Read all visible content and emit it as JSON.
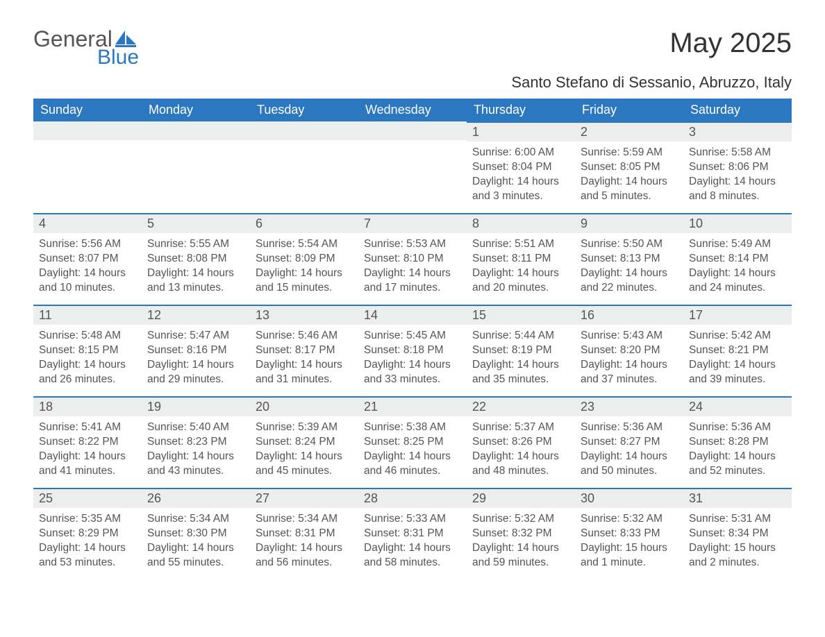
{
  "logo": {
    "general": "General",
    "blue": "Blue"
  },
  "title": "May 2025",
  "location": "Santo Stefano di Sessanio, Abruzzo, Italy",
  "colors": {
    "header_bg": "#2b77c0",
    "header_text": "#ffffff",
    "daynum_bg": "#eceded",
    "row_border": "#2b77c0",
    "body_text": "#555555",
    "logo_blue": "#2b77c0",
    "logo_gray": "#555555",
    "page_bg": "#ffffff"
  },
  "weekdays": [
    "Sunday",
    "Monday",
    "Tuesday",
    "Wednesday",
    "Thursday",
    "Friday",
    "Saturday"
  ],
  "weeks": [
    [
      null,
      null,
      null,
      null,
      {
        "day": "1",
        "sunrise": "6:00 AM",
        "sunset": "8:04 PM",
        "daylight": "14 hours and 3 minutes."
      },
      {
        "day": "2",
        "sunrise": "5:59 AM",
        "sunset": "8:05 PM",
        "daylight": "14 hours and 5 minutes."
      },
      {
        "day": "3",
        "sunrise": "5:58 AM",
        "sunset": "8:06 PM",
        "daylight": "14 hours and 8 minutes."
      }
    ],
    [
      {
        "day": "4",
        "sunrise": "5:56 AM",
        "sunset": "8:07 PM",
        "daylight": "14 hours and 10 minutes."
      },
      {
        "day": "5",
        "sunrise": "5:55 AM",
        "sunset": "8:08 PM",
        "daylight": "14 hours and 13 minutes."
      },
      {
        "day": "6",
        "sunrise": "5:54 AM",
        "sunset": "8:09 PM",
        "daylight": "14 hours and 15 minutes."
      },
      {
        "day": "7",
        "sunrise": "5:53 AM",
        "sunset": "8:10 PM",
        "daylight": "14 hours and 17 minutes."
      },
      {
        "day": "8",
        "sunrise": "5:51 AM",
        "sunset": "8:11 PM",
        "daylight": "14 hours and 20 minutes."
      },
      {
        "day": "9",
        "sunrise": "5:50 AM",
        "sunset": "8:13 PM",
        "daylight": "14 hours and 22 minutes."
      },
      {
        "day": "10",
        "sunrise": "5:49 AM",
        "sunset": "8:14 PM",
        "daylight": "14 hours and 24 minutes."
      }
    ],
    [
      {
        "day": "11",
        "sunrise": "5:48 AM",
        "sunset": "8:15 PM",
        "daylight": "14 hours and 26 minutes."
      },
      {
        "day": "12",
        "sunrise": "5:47 AM",
        "sunset": "8:16 PM",
        "daylight": "14 hours and 29 minutes."
      },
      {
        "day": "13",
        "sunrise": "5:46 AM",
        "sunset": "8:17 PM",
        "daylight": "14 hours and 31 minutes."
      },
      {
        "day": "14",
        "sunrise": "5:45 AM",
        "sunset": "8:18 PM",
        "daylight": "14 hours and 33 minutes."
      },
      {
        "day": "15",
        "sunrise": "5:44 AM",
        "sunset": "8:19 PM",
        "daylight": "14 hours and 35 minutes."
      },
      {
        "day": "16",
        "sunrise": "5:43 AM",
        "sunset": "8:20 PM",
        "daylight": "14 hours and 37 minutes."
      },
      {
        "day": "17",
        "sunrise": "5:42 AM",
        "sunset": "8:21 PM",
        "daylight": "14 hours and 39 minutes."
      }
    ],
    [
      {
        "day": "18",
        "sunrise": "5:41 AM",
        "sunset": "8:22 PM",
        "daylight": "14 hours and 41 minutes."
      },
      {
        "day": "19",
        "sunrise": "5:40 AM",
        "sunset": "8:23 PM",
        "daylight": "14 hours and 43 minutes."
      },
      {
        "day": "20",
        "sunrise": "5:39 AM",
        "sunset": "8:24 PM",
        "daylight": "14 hours and 45 minutes."
      },
      {
        "day": "21",
        "sunrise": "5:38 AM",
        "sunset": "8:25 PM",
        "daylight": "14 hours and 46 minutes."
      },
      {
        "day": "22",
        "sunrise": "5:37 AM",
        "sunset": "8:26 PM",
        "daylight": "14 hours and 48 minutes."
      },
      {
        "day": "23",
        "sunrise": "5:36 AM",
        "sunset": "8:27 PM",
        "daylight": "14 hours and 50 minutes."
      },
      {
        "day": "24",
        "sunrise": "5:36 AM",
        "sunset": "8:28 PM",
        "daylight": "14 hours and 52 minutes."
      }
    ],
    [
      {
        "day": "25",
        "sunrise": "5:35 AM",
        "sunset": "8:29 PM",
        "daylight": "14 hours and 53 minutes."
      },
      {
        "day": "26",
        "sunrise": "5:34 AM",
        "sunset": "8:30 PM",
        "daylight": "14 hours and 55 minutes."
      },
      {
        "day": "27",
        "sunrise": "5:34 AM",
        "sunset": "8:31 PM",
        "daylight": "14 hours and 56 minutes."
      },
      {
        "day": "28",
        "sunrise": "5:33 AM",
        "sunset": "8:31 PM",
        "daylight": "14 hours and 58 minutes."
      },
      {
        "day": "29",
        "sunrise": "5:32 AM",
        "sunset": "8:32 PM",
        "daylight": "14 hours and 59 minutes."
      },
      {
        "day": "30",
        "sunrise": "5:32 AM",
        "sunset": "8:33 PM",
        "daylight": "15 hours and 1 minute."
      },
      {
        "day": "31",
        "sunrise": "5:31 AM",
        "sunset": "8:34 PM",
        "daylight": "15 hours and 2 minutes."
      }
    ]
  ],
  "labels": {
    "sunrise": "Sunrise: ",
    "sunset": "Sunset: ",
    "daylight": "Daylight: "
  }
}
